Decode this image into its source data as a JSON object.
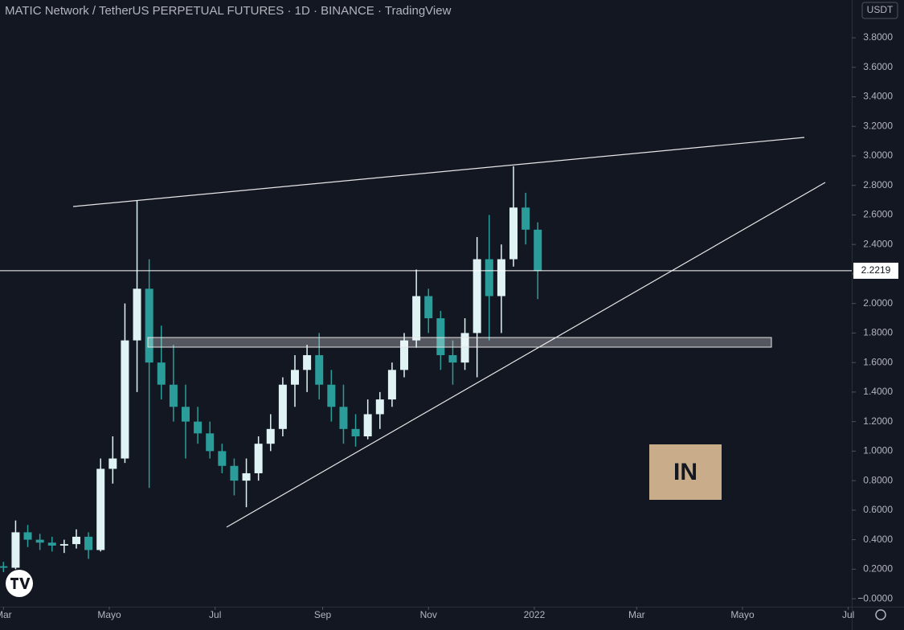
{
  "chart_data": {
    "type": "candlestick",
    "title": "MATIC Network / TetherUS PERPETUAL FUTURES · 1D · BINANCE · TradingView",
    "currency": "USDT",
    "logo_text": "IN",
    "up_color": "#dff3f5",
    "down_color": "#2a9d9a",
    "x": [
      0,
      7,
      14,
      21,
      28,
      35,
      42,
      49,
      56,
      63,
      70,
      77,
      84,
      91,
      98,
      105,
      112,
      119,
      126,
      133,
      140,
      147,
      154,
      161,
      168,
      175,
      182,
      189,
      196,
      203,
      210,
      217,
      224,
      231,
      238,
      245,
      252,
      259,
      266,
      273,
      280,
      287,
      294,
      301,
      308
    ],
    "open": [
      0.22,
      0.21,
      0.45,
      0.4,
      0.38,
      0.36,
      0.37,
      0.42,
      0.33,
      0.88,
      0.95,
      1.75,
      2.1,
      1.6,
      1.45,
      1.3,
      1.2,
      1.12,
      1.0,
      0.9,
      0.8,
      0.85,
      1.05,
      1.15,
      1.45,
      1.55,
      1.65,
      1.45,
      1.3,
      1.15,
      1.1,
      1.25,
      1.35,
      1.55,
      1.75,
      2.05,
      1.9,
      1.65,
      1.6,
      1.8,
      2.3,
      2.05,
      2.3,
      2.65,
      2.5
    ],
    "high": [
      0.25,
      0.53,
      0.5,
      0.44,
      0.42,
      0.4,
      0.47,
      0.45,
      0.95,
      1.1,
      2.0,
      2.7,
      2.3,
      1.85,
      1.72,
      1.45,
      1.3,
      1.2,
      1.05,
      0.95,
      0.95,
      1.1,
      1.25,
      1.5,
      1.65,
      1.72,
      1.8,
      1.55,
      1.45,
      1.25,
      1.35,
      1.4,
      1.6,
      1.8,
      2.23,
      2.1,
      1.95,
      1.75,
      1.9,
      2.45,
      2.6,
      2.4,
      2.93,
      2.75,
      2.55
    ],
    "low": [
      0.18,
      0.2,
      0.35,
      0.33,
      0.32,
      0.31,
      0.34,
      0.27,
      0.32,
      0.78,
      0.92,
      1.4,
      0.75,
      1.35,
      1.2,
      0.95,
      1.05,
      0.95,
      0.85,
      0.7,
      0.62,
      0.8,
      1.0,
      1.1,
      1.3,
      1.4,
      1.35,
      1.2,
      1.05,
      1.03,
      1.08,
      1.15,
      1.3,
      1.5,
      1.7,
      1.8,
      1.55,
      1.45,
      1.55,
      1.5,
      1.75,
      1.8,
      2.25,
      2.4,
      2.03
    ],
    "close": [
      0.21,
      0.45,
      0.4,
      0.38,
      0.36,
      0.37,
      0.42,
      0.33,
      0.88,
      0.95,
      1.75,
      2.1,
      1.6,
      1.45,
      1.3,
      1.2,
      1.12,
      1.0,
      0.9,
      0.8,
      0.85,
      1.05,
      1.15,
      1.45,
      1.55,
      1.65,
      1.45,
      1.3,
      1.15,
      1.1,
      1.25,
      1.35,
      1.55,
      1.75,
      2.05,
      1.9,
      1.65,
      1.6,
      1.8,
      2.3,
      2.05,
      2.3,
      2.65,
      2.5,
      2.22
    ],
    "last_price": {
      "value": 2.2219,
      "label": "2.2219"
    },
    "xlim": [
      -2,
      489
    ],
    "xticks": [
      {
        "value": 0,
        "label": "Mar"
      },
      {
        "value": 61,
        "label": "Mayo"
      },
      {
        "value": 122,
        "label": "Jul"
      },
      {
        "value": 184,
        "label": "Sep"
      },
      {
        "value": 245,
        "label": "Nov"
      },
      {
        "value": 306,
        "label": "2022"
      },
      {
        "value": 365,
        "label": "Mar"
      },
      {
        "value": 426,
        "label": "Mayo"
      },
      {
        "value": 487,
        "label": "Jul"
      }
    ],
    "ylim": [
      -0.054,
      4.056
    ],
    "yticks": [
      {
        "value": 0,
        "label": "−0.0000"
      },
      {
        "value": 0.2,
        "label": "0.2000"
      },
      {
        "value": 0.4,
        "label": "0.4000"
      },
      {
        "value": 0.6,
        "label": "0.6000"
      },
      {
        "value": 0.8,
        "label": "0.8000"
      },
      {
        "value": 1.0,
        "label": "1.0000"
      },
      {
        "value": 1.2,
        "label": "1.2000"
      },
      {
        "value": 1.4,
        "label": "1.4000"
      },
      {
        "value": 1.6,
        "label": "1.6000"
      },
      {
        "value": 1.8,
        "label": "1.8000"
      },
      {
        "value": 2.0,
        "label": "2.0000"
      },
      {
        "value": 2.2,
        "label": "2.2000"
      },
      {
        "value": 2.4,
        "label": "2.4000"
      },
      {
        "value": 2.6,
        "label": "2.6000"
      },
      {
        "value": 2.8,
        "label": "2.8000"
      },
      {
        "value": 3.0,
        "label": "3.0000"
      },
      {
        "value": 3.2,
        "label": "3.2000"
      },
      {
        "value": 3.4,
        "label": "3.4000"
      },
      {
        "value": 3.6,
        "label": "3.6000"
      },
      {
        "value": 3.8,
        "label": "3.8000"
      }
    ]
  }
}
